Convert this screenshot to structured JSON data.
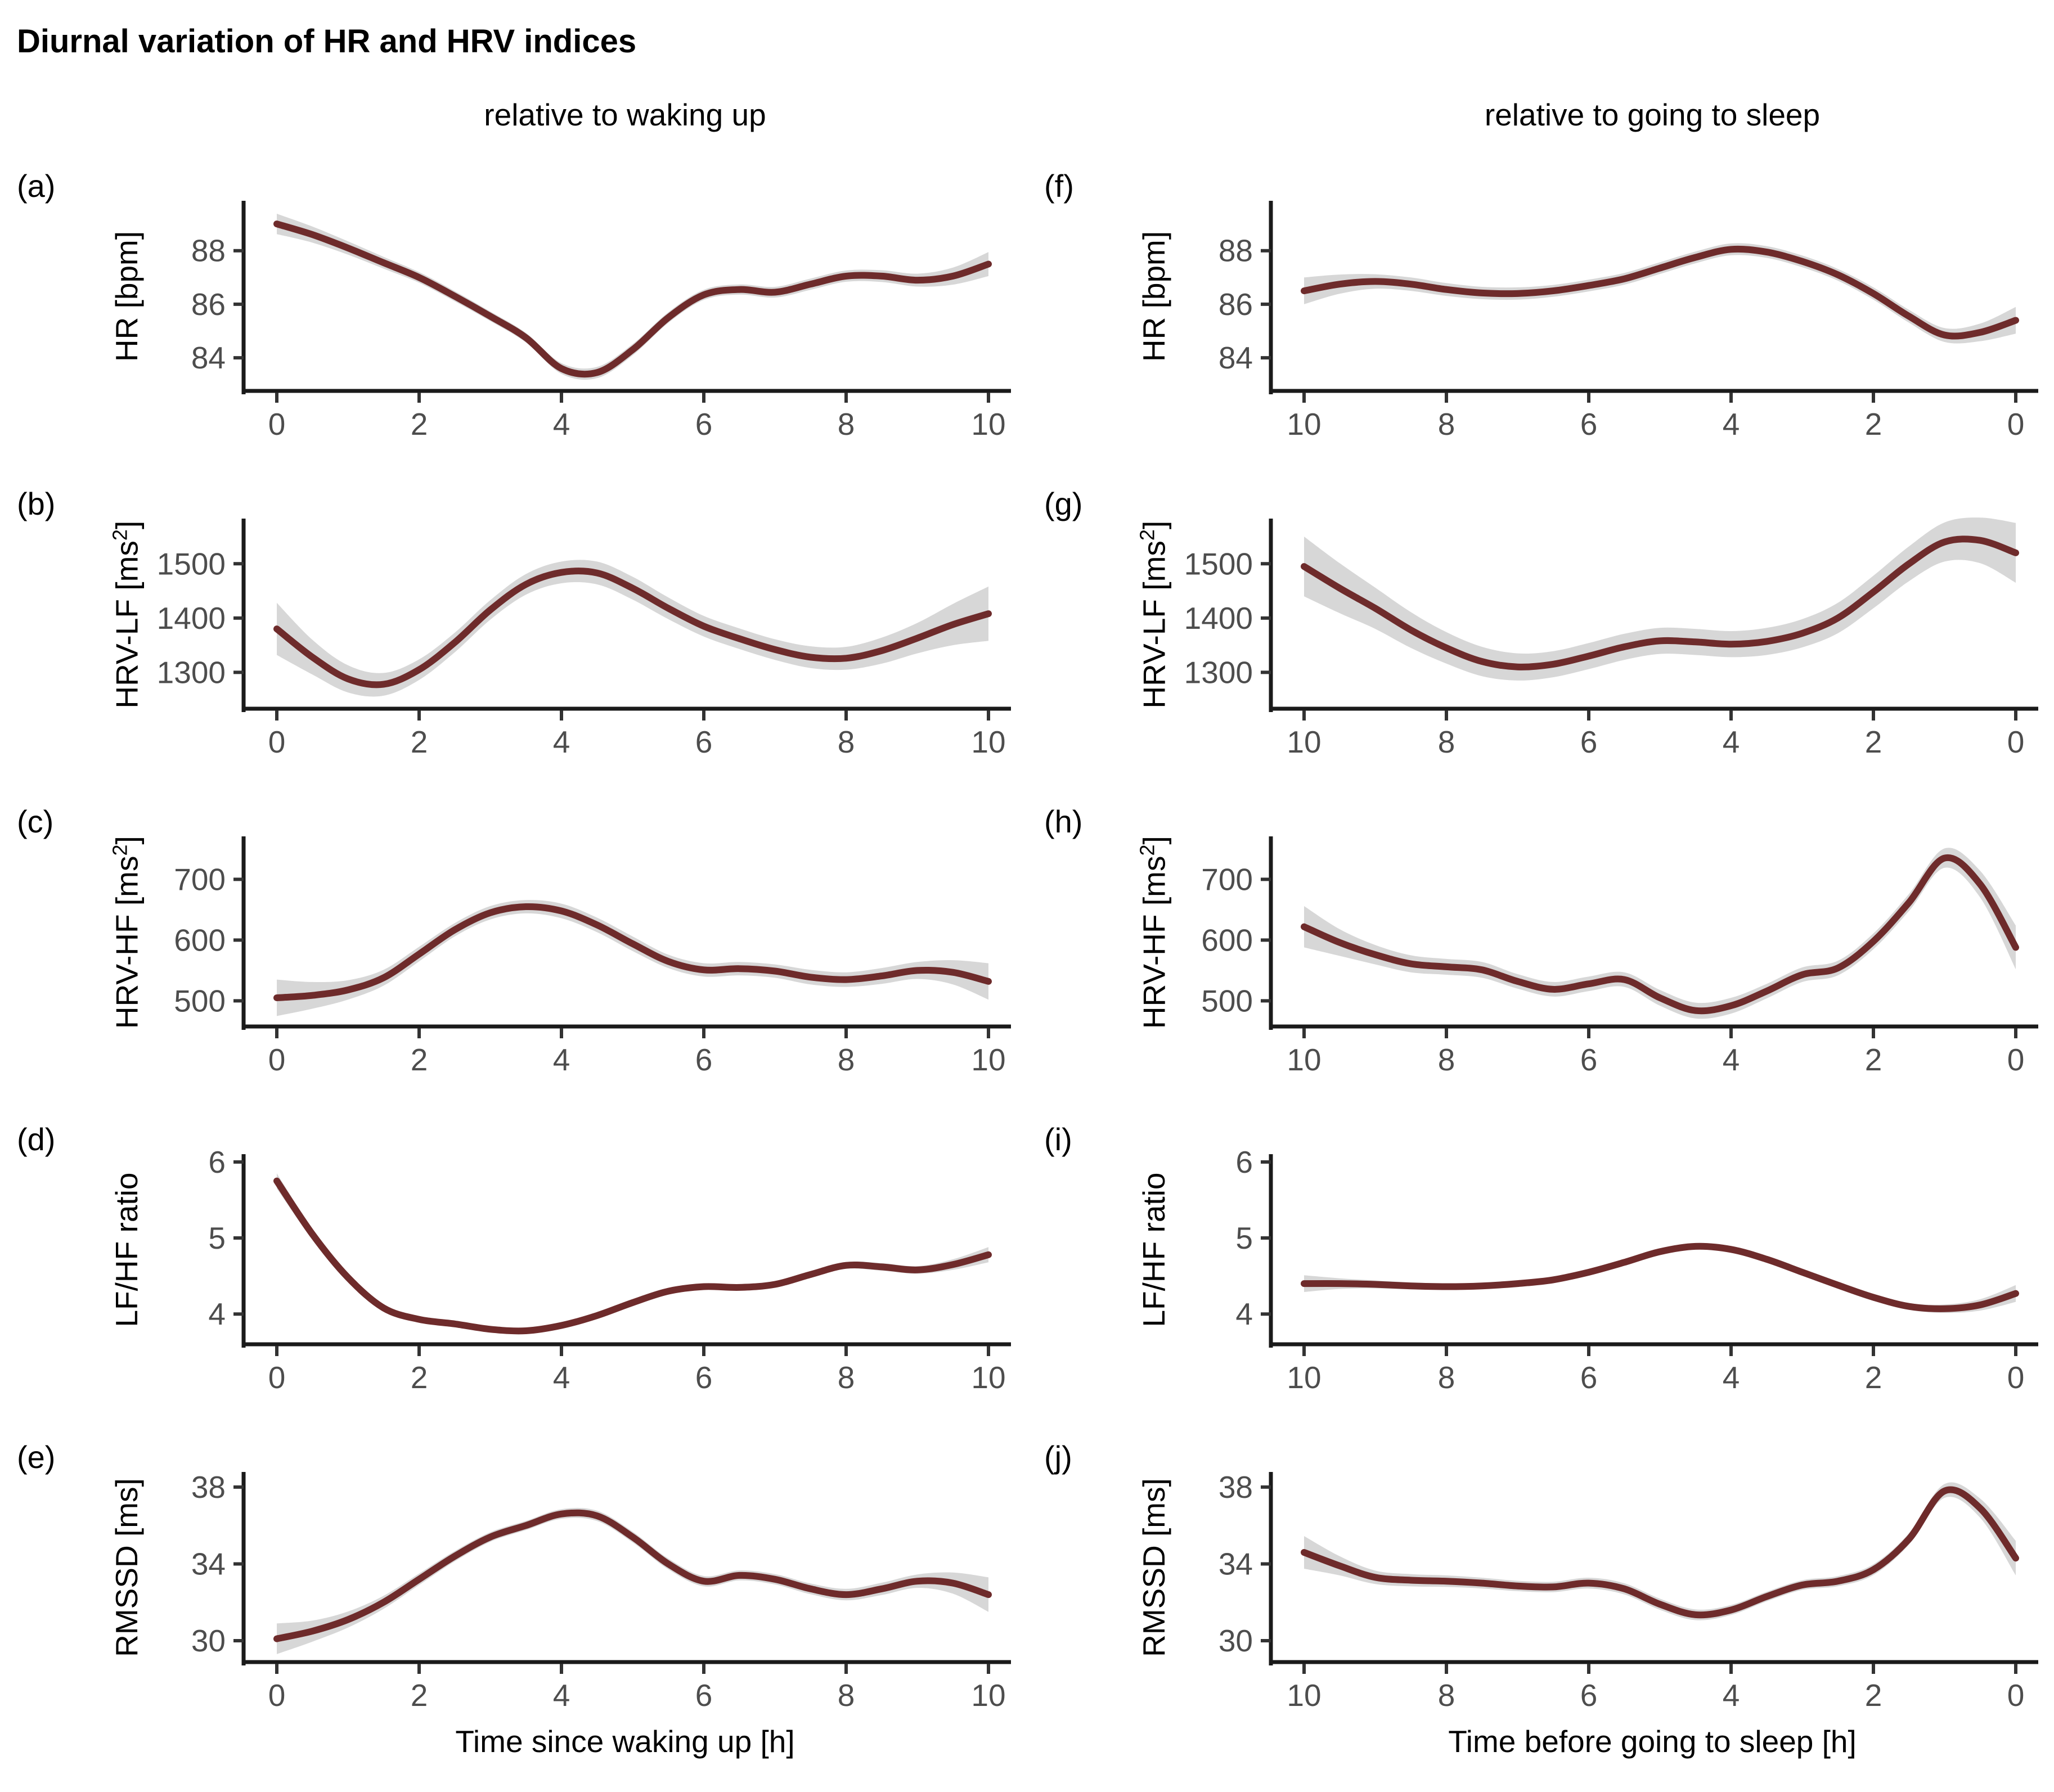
{
  "title": "Diurnal variation of HR and HRV indices",
  "columns": [
    {
      "header": "relative to waking up",
      "xlabel": "Time since waking up [h]"
    },
    {
      "header": "relative to going to sleep",
      "xlabel": "Time before going to sleep [h]"
    }
  ],
  "colors": {
    "line": "#6e2b2b",
    "band": "#d7d7d7",
    "axis": "#1a1a1a",
    "tick": "#333333",
    "tick_label": "#4d4d4d",
    "text": "#000000"
  },
  "chart_data": {
    "type": "line",
    "xlim": [
      0,
      10
    ],
    "x": [
      0,
      0.5,
      1,
      1.5,
      2,
      2.5,
      3,
      3.5,
      4,
      4.5,
      5,
      5.5,
      6,
      6.5,
      7,
      7.5,
      8,
      8.5,
      9,
      9.5,
      10
    ],
    "panels": [
      {
        "id": "a",
        "label": "(a)",
        "row": 0,
        "col": 0,
        "x_reversed": false,
        "ylabel": [
          "HR [bpm]",
          "",
          ""
        ],
        "yticks": [
          84,
          86,
          88
        ],
        "ylim": [
          82.7,
          89.8
        ],
        "xticks": [
          0,
          2,
          4,
          6,
          8,
          10
        ],
        "y": [
          89.0,
          88.6,
          88.1,
          87.55,
          87.0,
          86.3,
          85.55,
          84.75,
          83.6,
          83.45,
          84.3,
          85.5,
          86.35,
          86.55,
          86.45,
          86.75,
          87.05,
          87.05,
          86.9,
          87.05,
          87.5
        ],
        "ci": [
          0.38,
          0.3,
          0.25,
          0.22,
          0.2,
          0.19,
          0.18,
          0.18,
          0.2,
          0.21,
          0.21,
          0.2,
          0.19,
          0.19,
          0.2,
          0.21,
          0.21,
          0.22,
          0.24,
          0.32,
          0.45
        ]
      },
      {
        "id": "b",
        "label": "(b)",
        "row": 1,
        "col": 0,
        "x_reversed": false,
        "ylabel": [
          "HRV-LF [ms",
          "2",
          "]"
        ],
        "yticks": [
          1300,
          1400,
          1500
        ],
        "ylim": [
          1230,
          1580
        ],
        "xticks": [
          0,
          2,
          4,
          6,
          8,
          10
        ],
        "y": [
          1380,
          1328,
          1288,
          1278,
          1305,
          1355,
          1415,
          1462,
          1484,
          1483,
          1455,
          1418,
          1385,
          1362,
          1342,
          1328,
          1326,
          1340,
          1363,
          1388,
          1408
        ],
        "ci": [
          48,
          32,
          25,
          21,
          19,
          18,
          18,
          19,
          20,
          21,
          21,
          20,
          19,
          19,
          19,
          20,
          21,
          24,
          28,
          38,
          50
        ]
      },
      {
        "id": "c",
        "label": "(c)",
        "row": 2,
        "col": 0,
        "x_reversed": false,
        "ylabel": [
          "HRV-HF [ms",
          "2",
          "]"
        ],
        "yticks": [
          500,
          600,
          700
        ],
        "ylim": [
          455,
          768
        ],
        "xticks": [
          0,
          2,
          4,
          6,
          8,
          10
        ],
        "y": [
          505,
          509,
          518,
          538,
          577,
          617,
          645,
          655,
          648,
          625,
          594,
          565,
          551,
          553,
          549,
          539,
          535,
          541,
          550,
          547,
          532
        ],
        "ci": [
          30,
          22,
          16,
          13,
          12,
          11,
          11,
          11,
          12,
          12,
          12,
          11,
          11,
          11,
          11,
          12,
          12,
          13,
          14,
          20,
          30
        ]
      },
      {
        "id": "d",
        "label": "(d)",
        "row": 3,
        "col": 0,
        "x_reversed": false,
        "ylabel": [
          "LF/HF ratio",
          "",
          ""
        ],
        "yticks": [
          4,
          5,
          6
        ],
        "ylim": [
          3.58,
          6.08
        ],
        "xticks": [
          0,
          2,
          4,
          6,
          8,
          10
        ],
        "y": [
          5.75,
          5.05,
          4.48,
          4.08,
          3.93,
          3.87,
          3.8,
          3.78,
          3.85,
          3.98,
          4.15,
          4.3,
          4.36,
          4.35,
          4.39,
          4.52,
          4.64,
          4.62,
          4.58,
          4.65,
          4.78
        ],
        "ci": [
          0.1,
          0.07,
          0.05,
          0.04,
          0.04,
          0.035,
          0.035,
          0.035,
          0.04,
          0.04,
          0.04,
          0.04,
          0.04,
          0.04,
          0.04,
          0.045,
          0.045,
          0.05,
          0.05,
          0.07,
          0.1
        ]
      },
      {
        "id": "e",
        "label": "(e)",
        "row": 4,
        "col": 0,
        "x_reversed": false,
        "ylabel": [
          "RMSSD [ms]",
          "",
          ""
        ],
        "yticks": [
          30,
          34,
          38
        ],
        "ylim": [
          28.8,
          38.7
        ],
        "xticks": [
          0,
          2,
          4,
          6,
          8,
          10
        ],
        "y": [
          30.1,
          30.5,
          31.1,
          32.0,
          33.2,
          34.4,
          35.4,
          36.0,
          36.6,
          36.5,
          35.4,
          34.0,
          33.1,
          33.4,
          33.2,
          32.7,
          32.4,
          32.7,
          33.1,
          33.0,
          32.4
        ],
        "ci": [
          0.8,
          0.55,
          0.42,
          0.34,
          0.3,
          0.27,
          0.25,
          0.24,
          0.25,
          0.27,
          0.28,
          0.28,
          0.27,
          0.26,
          0.27,
          0.28,
          0.3,
          0.32,
          0.35,
          0.55,
          0.9
        ]
      },
      {
        "id": "f",
        "label": "(f)",
        "row": 0,
        "col": 1,
        "x_reversed": true,
        "ylabel": [
          "HR [bpm]",
          "",
          ""
        ],
        "yticks": [
          84,
          86,
          88
        ],
        "ylim": [
          82.7,
          89.8
        ],
        "xticks": [
          10,
          8,
          6,
          4,
          2,
          0
        ],
        "y": [
          85.4,
          84.95,
          84.85,
          85.55,
          86.4,
          87.1,
          87.6,
          87.95,
          88.05,
          87.75,
          87.35,
          86.95,
          86.7,
          86.5,
          86.4,
          86.42,
          86.55,
          86.75,
          86.85,
          86.75,
          86.5
        ],
        "ci": [
          0.5,
          0.33,
          0.26,
          0.24,
          0.23,
          0.22,
          0.22,
          0.22,
          0.22,
          0.22,
          0.22,
          0.22,
          0.22,
          0.22,
          0.23,
          0.23,
          0.24,
          0.25,
          0.27,
          0.36,
          0.5
        ]
      },
      {
        "id": "g",
        "label": "(g)",
        "row": 1,
        "col": 1,
        "x_reversed": true,
        "ylabel": [
          "HRV-LF [ms",
          "2",
          "]"
        ],
        "yticks": [
          1300,
          1400,
          1500
        ],
        "ylim": [
          1230,
          1580
        ],
        "xticks": [
          10,
          8,
          6,
          4,
          2,
          0
        ],
        "y": [
          1520,
          1543,
          1540,
          1500,
          1448,
          1400,
          1372,
          1357,
          1352,
          1356,
          1358,
          1347,
          1330,
          1315,
          1310,
          1320,
          1345,
          1378,
          1418,
          1455,
          1495
        ],
        "ci": [
          55,
          42,
          36,
          32,
          30,
          28,
          26,
          25,
          24,
          24,
          24,
          24,
          24,
          24,
          25,
          27,
          29,
          33,
          38,
          46,
          55
        ]
      },
      {
        "id": "h",
        "label": "(h)",
        "row": 2,
        "col": 1,
        "x_reversed": true,
        "ylabel": [
          "HRV-HF [ms",
          "2",
          "]"
        ],
        "yticks": [
          500,
          600,
          700
        ],
        "ylim": [
          455,
          768
        ],
        "xticks": [
          10,
          8,
          6,
          4,
          2,
          0
        ],
        "y": [
          588,
          692,
          735,
          662,
          598,
          554,
          543,
          516,
          492,
          484,
          505,
          535,
          528,
          519,
          532,
          551,
          556,
          561,
          576,
          596,
          622
        ],
        "ci": [
          36,
          22,
          16,
          14,
          13,
          12,
          12,
          12,
          13,
          13,
          13,
          12,
          12,
          12,
          12,
          13,
          13,
          14,
          16,
          22,
          34
        ]
      },
      {
        "id": "i",
        "label": "(i)",
        "row": 3,
        "col": 1,
        "x_reversed": true,
        "ylabel": [
          "LF/HF ratio",
          "",
          ""
        ],
        "yticks": [
          4,
          5,
          6
        ],
        "ylim": [
          3.58,
          6.08
        ],
        "xticks": [
          10,
          8,
          6,
          4,
          2,
          0
        ],
        "y": [
          4.27,
          4.12,
          4.07,
          4.1,
          4.22,
          4.38,
          4.55,
          4.72,
          4.85,
          4.89,
          4.82,
          4.68,
          4.55,
          4.45,
          4.4,
          4.37,
          4.36,
          4.37,
          4.39,
          4.4,
          4.4
        ],
        "ci": [
          0.11,
          0.075,
          0.055,
          0.045,
          0.04,
          0.038,
          0.036,
          0.036,
          0.038,
          0.04,
          0.04,
          0.04,
          0.038,
          0.038,
          0.038,
          0.04,
          0.042,
          0.046,
          0.052,
          0.07,
          0.11
        ]
      },
      {
        "id": "j",
        "label": "(j)",
        "row": 4,
        "col": 1,
        "x_reversed": true,
        "ylabel": [
          "RMSSD [ms]",
          "",
          ""
        ],
        "yticks": [
          30,
          34,
          38
        ],
        "ylim": [
          28.8,
          38.7
        ],
        "xticks": [
          10,
          8,
          6,
          4,
          2,
          0
        ],
        "y": [
          34.3,
          36.9,
          37.8,
          35.3,
          33.7,
          33.1,
          32.9,
          32.3,
          31.6,
          31.35,
          31.9,
          32.7,
          33.0,
          32.8,
          32.85,
          33.0,
          33.1,
          33.15,
          33.3,
          33.9,
          34.6
        ],
        "ci": [
          0.9,
          0.5,
          0.36,
          0.3,
          0.28,
          0.26,
          0.25,
          0.25,
          0.26,
          0.28,
          0.29,
          0.29,
          0.28,
          0.27,
          0.27,
          0.28,
          0.3,
          0.32,
          0.35,
          0.5,
          0.85
        ]
      }
    ]
  }
}
